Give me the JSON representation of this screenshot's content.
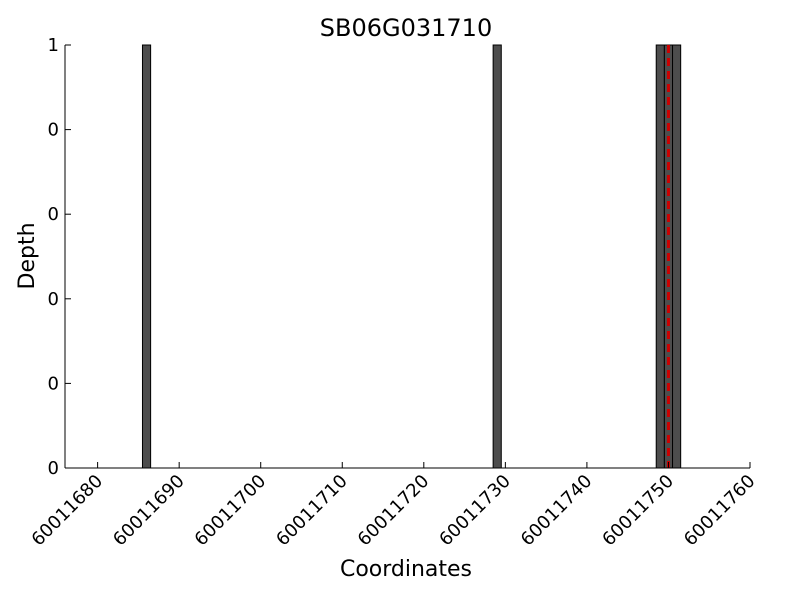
{
  "chart_data": {
    "type": "bar",
    "title": "SB06G031710",
    "xlabel": "Coordinates",
    "ylabel": "Depth",
    "xlim": [
      60011676,
      60011760
    ],
    "ylim": [
      0,
      1
    ],
    "x_ticks": [
      60011680,
      60011690,
      60011700,
      60011710,
      60011720,
      60011730,
      60011740,
      60011750,
      60011760
    ],
    "x_tick_labels": [
      "60011680",
      "60011690",
      "60011700",
      "60011710",
      "60011720",
      "60011730",
      "60011740",
      "60011750",
      "60011760"
    ],
    "y_ticks": [
      0,
      0.2,
      0.4,
      0.6,
      0.8,
      1
    ],
    "y_tick_labels": [
      "0",
      "0",
      "0",
      "0",
      "0",
      "1"
    ],
    "bar_width": 1,
    "bars": [
      {
        "x": 60011686,
        "value": 1
      },
      {
        "x": 60011729,
        "value": 1
      },
      {
        "x": 60011749,
        "value": 1
      },
      {
        "x": 60011750,
        "value": 1
      },
      {
        "x": 60011751,
        "value": 1
      }
    ],
    "marker_line": {
      "x": 60011750,
      "style": "dashed",
      "color": "#cc0000"
    },
    "bar_color": "#4d4d4d",
    "bar_edge_color": "#000000",
    "grid": false
  }
}
